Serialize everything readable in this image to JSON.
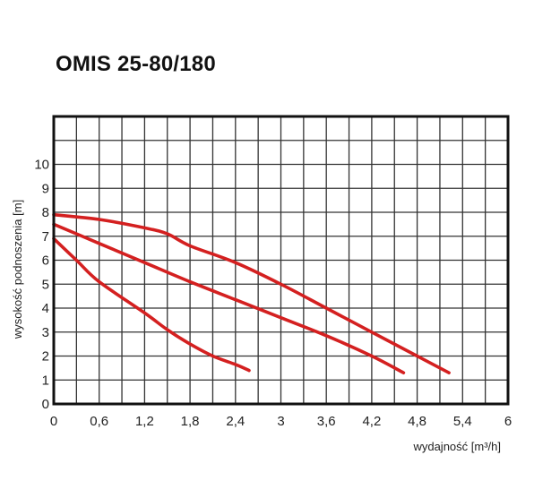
{
  "chart_data": {
    "type": "line",
    "title": "OMIS 25-80/180",
    "xlabel": "wydajność [m³/h]",
    "ylabel": "wysokość podnoszenia [m]",
    "xlim": [
      0,
      6
    ],
    "ylim": [
      0,
      12
    ],
    "x_ticks": [
      "0",
      "0,6",
      "1,2",
      "1,8",
      "2,4",
      "3",
      "3,6",
      "4,2",
      "4,8",
      "5,4",
      "6"
    ],
    "y_ticks": [
      "0",
      "1",
      "2",
      "3",
      "4",
      "5",
      "6",
      "7",
      "8",
      "9",
      "10"
    ],
    "grid": true,
    "line_color": "#d42020",
    "series": [
      {
        "points": [
          [
            0,
            7.9
          ],
          [
            0.6,
            7.7
          ],
          [
            1.2,
            7.35
          ],
          [
            1.5,
            7.1
          ],
          [
            1.8,
            6.6
          ],
          [
            2.4,
            5.9
          ],
          [
            3.0,
            5.0
          ],
          [
            3.6,
            4.0
          ],
          [
            4.2,
            3.0
          ],
          [
            4.8,
            2.0
          ],
          [
            5.22,
            1.3
          ]
        ]
      },
      {
        "points": [
          [
            0,
            7.5
          ],
          [
            0.6,
            6.7
          ],
          [
            1.2,
            5.9
          ],
          [
            1.8,
            5.1
          ],
          [
            2.4,
            4.35
          ],
          [
            3.0,
            3.6
          ],
          [
            3.6,
            2.85
          ],
          [
            4.2,
            2.0
          ],
          [
            4.62,
            1.3
          ]
        ]
      },
      {
        "points": [
          [
            0,
            6.9
          ],
          [
            0.3,
            6.0
          ],
          [
            0.6,
            5.1
          ],
          [
            1.2,
            3.8
          ],
          [
            1.5,
            3.1
          ],
          [
            1.8,
            2.5
          ],
          [
            2.1,
            2.0
          ],
          [
            2.4,
            1.65
          ],
          [
            2.58,
            1.4
          ]
        ]
      }
    ]
  }
}
